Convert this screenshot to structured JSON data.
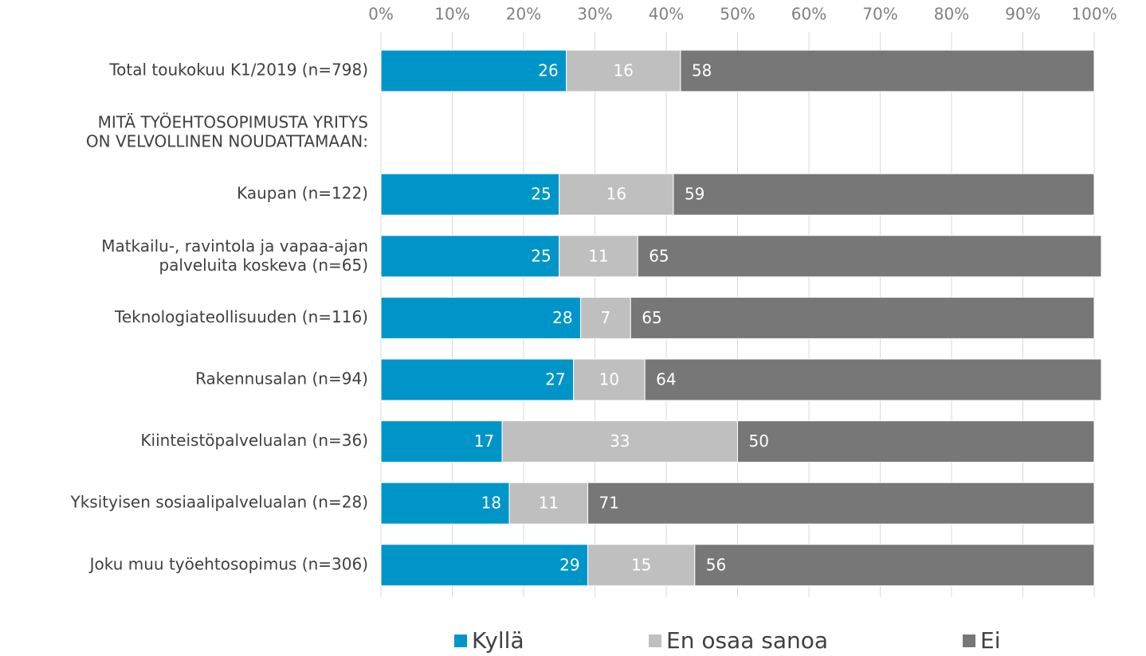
{
  "chart_data": {
    "type": "stacked_barh",
    "categories": [
      "Total toukokuu K1/2019 (n=798)",
      "MITÄ TYÖEHTOSOPIMUSTA YRITYS\nON VELVOLLINEN NOUDATTAMAAN:",
      "Kaupan (n=122)",
      "Matkailu-, ravintola ja vapaa-ajan\npalveluita koskeva (n=65)",
      "Teknologiateollisuuden (n=116)",
      "Rakennusalan (n=94)",
      "Kiinteistöpalvelualan (n=36)",
      "Yksityisen sosiaalipalvelualan (n=28)",
      "Joku muu työehtosopimus (n=306)"
    ],
    "series": [
      {
        "name": "Kyllä",
        "color": "#0095c8",
        "values": [
          26,
          null,
          25,
          25,
          28,
          27,
          17,
          18,
          29
        ]
      },
      {
        "name": "En osaa sanoa",
        "color": "#bfbfbf",
        "values": [
          16,
          null,
          16,
          11,
          7,
          10,
          33,
          11,
          15
        ]
      },
      {
        "name": "Ei",
        "color": "#777777",
        "values": [
          58,
          null,
          59,
          65,
          65,
          64,
          50,
          71,
          56
        ]
      }
    ],
    "xlim": [
      0,
      100
    ],
    "xticks": [
      {
        "value": 0,
        "label": "0%"
      },
      {
        "value": 10,
        "label": "10%"
      },
      {
        "value": 20,
        "label": "20%"
      },
      {
        "value": 30,
        "label": "30%"
      },
      {
        "value": 40,
        "label": "40%"
      },
      {
        "value": 50,
        "label": "50%"
      },
      {
        "value": 60,
        "label": "60%"
      },
      {
        "value": 70,
        "label": "70%"
      },
      {
        "value": 80,
        "label": "80%"
      },
      {
        "value": 90,
        "label": "90%"
      },
      {
        "value": 100,
        "label": "100%"
      }
    ],
    "grid": true,
    "legend": "bottom"
  }
}
